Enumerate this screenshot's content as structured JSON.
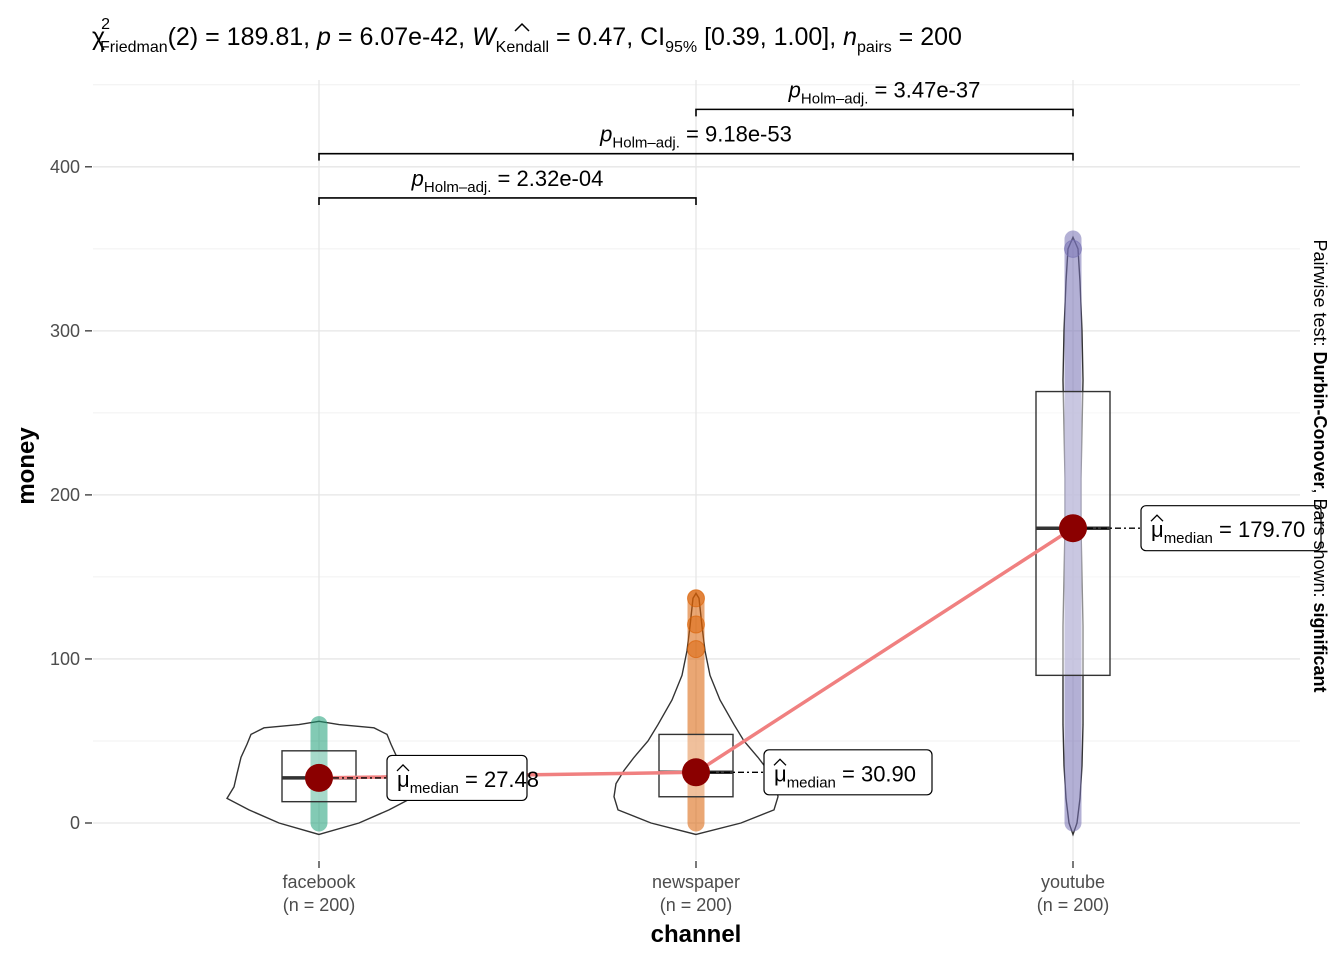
{
  "chart_data": {
    "type": "violin-box-scatter",
    "title_parts": {
      "stat_symbol": "χ",
      "stat_sup": "2",
      "stat_sub": "Friedman",
      "df": "(2)",
      "stat_value": "189.81",
      "p_label": "p",
      "p_value": "6.07e-42",
      "effect_symbol": "W",
      "effect_sub": "Kendall",
      "effect_value": "0.47",
      "ci_label": "CI",
      "ci_sub": "95%",
      "ci_value": "[0.39, 1.00]",
      "n_label": "n",
      "n_sub": "pairs",
      "n_value": "200"
    },
    "xlabel": "channel",
    "ylabel": "money",
    "caption_prefix": "Pairwise test: ",
    "caption_test": "Durbin-Conover",
    "caption_mid": ", Bars shown: ",
    "caption_bars": "significant",
    "ylim": [
      -7,
      450
    ],
    "yticks": [
      0,
      100,
      200,
      300,
      400
    ],
    "grid": true,
    "categories": [
      "facebook",
      "newspaper",
      "youtube"
    ],
    "category_counts": [
      "(n = 200)",
      "(n = 200)",
      "(n = 200)"
    ],
    "colors": {
      "facebook": "#1b9e77",
      "newspaper": "#d95f02",
      "youtube": "#7570b3",
      "median_point": "#8b0000",
      "median_line": "#f08080"
    },
    "boxes": [
      {
        "category": "facebook",
        "q1": 13,
        "median": 27.48,
        "q3": 44,
        "min": 0,
        "max": 60
      },
      {
        "category": "newspaper",
        "q1": 16,
        "median": 30.9,
        "q3": 54,
        "min": 0,
        "max": 137
      },
      {
        "category": "youtube",
        "q1": 90,
        "median": 179.7,
        "q3": 263,
        "min": 0,
        "max": 356
      }
    ],
    "medians": [
      {
        "category": "facebook",
        "symbol": "μ",
        "sub": "median",
        "value": "27.48"
      },
      {
        "category": "newspaper",
        "symbol": "μ",
        "sub": "median",
        "value": "30.90"
      },
      {
        "category": "youtube",
        "symbol": "μ",
        "sub": "median",
        "value": "179.70"
      }
    ],
    "pairwise": [
      {
        "from": "facebook",
        "to": "newspaper",
        "p_label": "p",
        "p_sub": "Holm–adj.",
        "value": "2.32e-04"
      },
      {
        "from": "facebook",
        "to": "youtube",
        "p_label": "p",
        "p_sub": "Holm–adj.",
        "value": "9.18e-53"
      },
      {
        "from": "newspaper",
        "to": "youtube",
        "p_label": "p",
        "p_sub": "Holm–adj.",
        "value": "3.47e-37"
      }
    ]
  }
}
